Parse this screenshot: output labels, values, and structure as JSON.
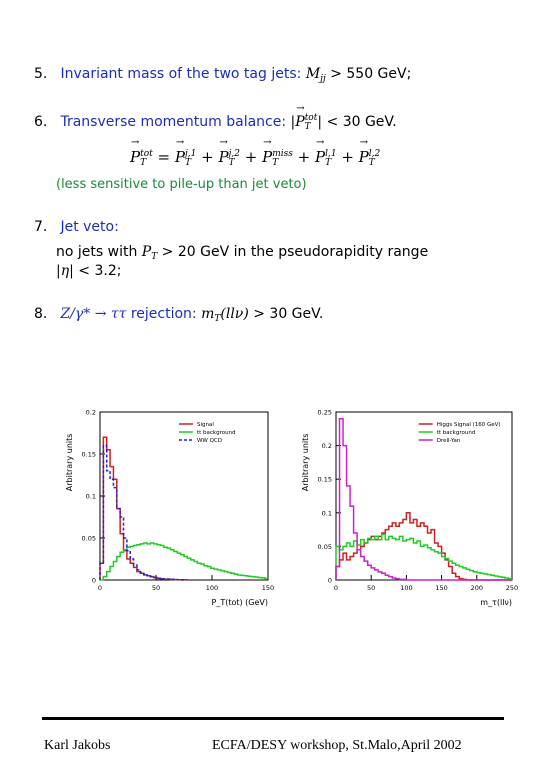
{
  "items": [
    {
      "num": "5.",
      "label": "Invariant mass of the two tag jets:",
      "cond": "> 550 GeV;"
    },
    {
      "num": "6.",
      "label": "Transverse momentum balance:",
      "cond": "< 30 GeV."
    },
    {
      "num": "7.",
      "label": "Jet veto:",
      "text1a": "no jets with",
      "text1b": "> 20 GeV in the pseudorapidity range",
      "text2": "< 3.2;"
    },
    {
      "num": "8.",
      "label": "rejection:",
      "cond": "> 30 GeV."
    }
  ],
  "note": "(less sensitive to pile-up than jet veto)",
  "colors": {
    "signal": "#cc2222",
    "background": "#22cc22",
    "ww": "#2222cc",
    "dy": "#cc22cc",
    "blue_text": "#1a2eb8",
    "green_text": "#1b8a3a"
  },
  "chart_data": [
    {
      "type": "line",
      "xlabel": "P_T(tot) (GeV)",
      "ylabel": "Arbitrary units",
      "xlim": [
        0,
        150
      ],
      "ylim": [
        0,
        0.2
      ],
      "xticks": [
        "0",
        "50",
        "100",
        "150"
      ],
      "yticks": [
        "0",
        "0.05",
        "0.1",
        "0.15",
        "0.2"
      ],
      "legend_position": "top-right",
      "series": [
        {
          "name": "Signal",
          "color": "#cc2222",
          "step": 3,
          "values": [
            0.02,
            0.17,
            0.155,
            0.135,
            0.12,
            0.085,
            0.055,
            0.035,
            0.025,
            0.02,
            0.015,
            0.01,
            0.008,
            0.006,
            0.005,
            0.004,
            0.003,
            0.002,
            0.0015,
            0.001,
            0.001,
            0.0008,
            0.0005,
            0.0003,
            0.0002,
            0.0001
          ]
        },
        {
          "name": "tt background",
          "color": "#22cc22",
          "step": 3,
          "values": [
            0.0,
            0.004,
            0.01,
            0.016,
            0.022,
            0.028,
            0.033,
            0.036,
            0.039,
            0.04,
            0.041,
            0.042,
            0.043,
            0.044,
            0.043,
            0.044,
            0.043,
            0.042,
            0.041,
            0.039,
            0.038,
            0.036,
            0.034,
            0.032,
            0.03,
            0.028,
            0.026,
            0.024,
            0.022,
            0.02,
            0.019,
            0.017,
            0.016,
            0.014,
            0.013,
            0.012,
            0.011,
            0.01,
            0.009,
            0.008,
            0.007,
            0.006,
            0.0055,
            0.005,
            0.0045,
            0.004,
            0.0035,
            0.003,
            0.0025,
            0.002
          ]
        },
        {
          "name": "WW QCD",
          "color": "#2222cc",
          "dashed": true,
          "step": 3,
          "values": [
            0.02,
            0.16,
            0.13,
            0.12,
            0.11,
            0.085,
            0.075,
            0.05,
            0.035,
            0.025,
            0.018,
            0.012,
            0.009,
            0.007,
            0.005,
            0.004,
            0.003,
            0.002,
            0.0015,
            0.001,
            0.001,
            0.0008,
            0.0005,
            0.0003,
            0.0002,
            0.0001
          ]
        }
      ]
    },
    {
      "type": "line",
      "xlabel": "m_τ(llν)",
      "ylabel": "Arbitrary units",
      "xlim": [
        0,
        250
      ],
      "ylim": [
        0,
        0.25
      ],
      "xticks": [
        "0",
        "50",
        "100",
        "150",
        "200",
        "250"
      ],
      "yticks": [
        "0",
        "0.05",
        "0.1",
        "0.15",
        "0.2",
        "0.25"
      ],
      "legend_position": "top-right",
      "series": [
        {
          "name": "Higgs Signal (160 GeV)",
          "color": "#cc2222",
          "step": 5,
          "values": [
            0.02,
            0.03,
            0.04,
            0.03,
            0.035,
            0.04,
            0.045,
            0.05,
            0.055,
            0.06,
            0.065,
            0.06,
            0.065,
            0.07,
            0.075,
            0.08,
            0.085,
            0.08,
            0.085,
            0.09,
            0.1,
            0.085,
            0.09,
            0.08,
            0.085,
            0.08,
            0.07,
            0.075,
            0.055,
            0.05,
            0.04,
            0.03,
            0.02,
            0.01,
            0.005,
            0.002,
            0.001,
            0.0,
            0.0,
            0.0,
            0.0,
            0.0,
            0.0,
            0.0,
            0.0,
            0.0,
            0.0,
            0.0,
            0.0,
            0.0
          ]
        },
        {
          "name": "tt background",
          "color": "#22cc22",
          "step": 5,
          "values": [
            0.05,
            0.045,
            0.05,
            0.055,
            0.05,
            0.058,
            0.052,
            0.06,
            0.055,
            0.062,
            0.06,
            0.065,
            0.06,
            0.068,
            0.06,
            0.065,
            0.062,
            0.06,
            0.065,
            0.058,
            0.06,
            0.062,
            0.055,
            0.058,
            0.05,
            0.052,
            0.048,
            0.045,
            0.042,
            0.04,
            0.035,
            0.032,
            0.028,
            0.025,
            0.022,
            0.02,
            0.018,
            0.016,
            0.014,
            0.012,
            0.011,
            0.01,
            0.009,
            0.008,
            0.007,
            0.006,
            0.005,
            0.004,
            0.003,
            0.002
          ]
        },
        {
          "name": "Drell-Yan",
          "color": "#cc22cc",
          "step": 5,
          "values": [
            0.02,
            0.24,
            0.2,
            0.14,
            0.11,
            0.07,
            0.045,
            0.035,
            0.028,
            0.022,
            0.018,
            0.015,
            0.012,
            0.01,
            0.007,
            0.005,
            0.003,
            0.002,
            0.001,
            0.001,
            0.0,
            0.0,
            0.0,
            0.0,
            0.0,
            0.0,
            0.0,
            0.0,
            0.0,
            0.0,
            0.0,
            0.0,
            0.0,
            0.0,
            0.0,
            0.0,
            0.0,
            0.0,
            0.0,
            0.0,
            0.0,
            0.0,
            0.0,
            0.0,
            0.0,
            0.0,
            0.0,
            0.0,
            0.0,
            0.0
          ]
        }
      ]
    }
  ],
  "footer": {
    "left": "Karl Jakobs",
    "right": "ECFA/DESY workshop, St.Malo,April 2002"
  }
}
